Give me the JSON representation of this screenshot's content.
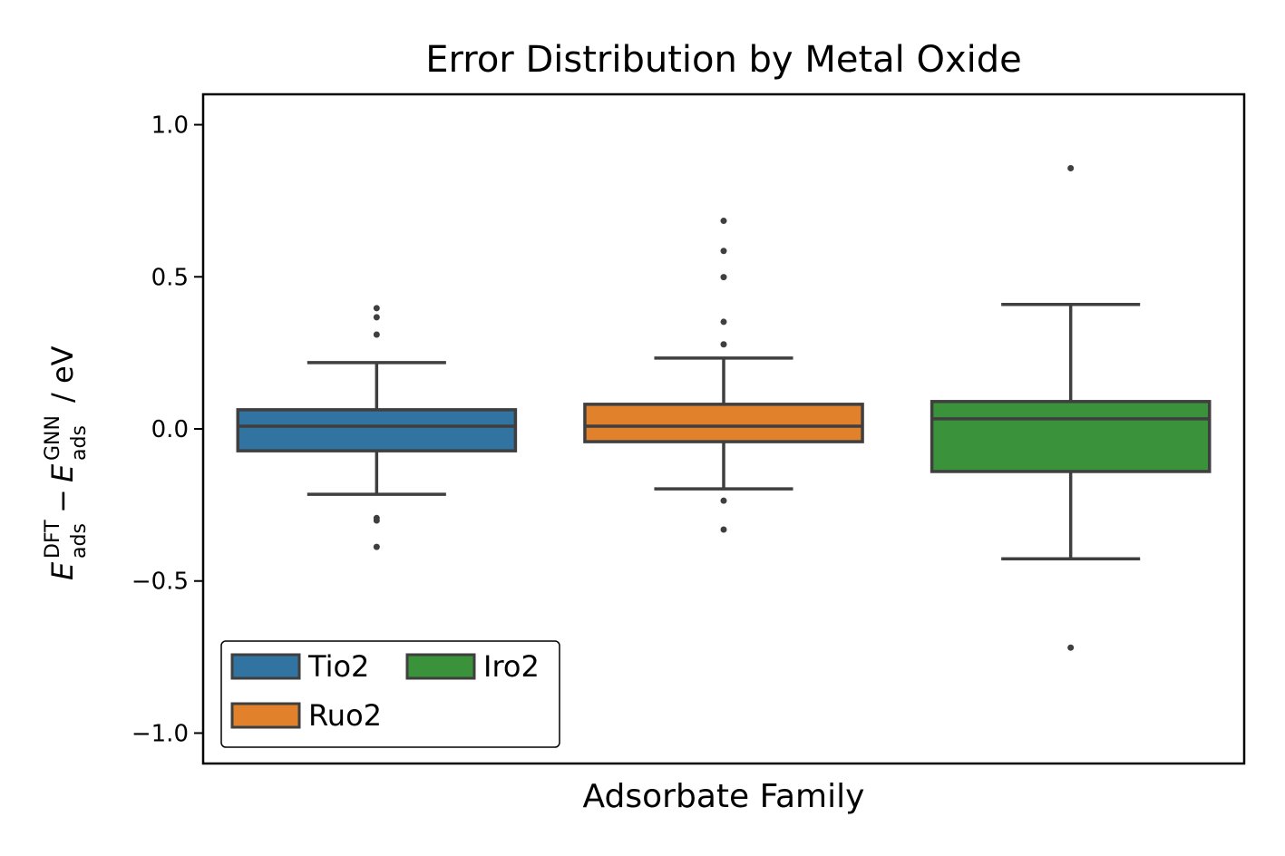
{
  "chart_data": {
    "type": "box",
    "title": "Error Distribution by Metal Oxide",
    "xlabel": "Adsorbate Family",
    "ylabel": [
      "E",
      "DFT",
      "ads",
      "−",
      "E",
      "GNN",
      "ads",
      "/ eV"
    ],
    "ylim": [
      -1.1,
      1.1
    ],
    "yticks": [
      {
        "value": -1.0,
        "label": "−1.0"
      },
      {
        "value": -0.5,
        "label": "−0.5"
      },
      {
        "value": 0.0,
        "label": "0.0"
      },
      {
        "value": 0.5,
        "label": "0.5"
      },
      {
        "value": 1.0,
        "label": "1.0"
      }
    ],
    "legend": "lower left",
    "series": [
      {
        "name": "Tio2",
        "color": "#3274a1",
        "whislo": -0.215,
        "q1": -0.072,
        "med": 0.009,
        "q3": 0.063,
        "whishi": 0.218,
        "fliers": [
          0.397,
          0.367,
          0.31,
          -0.293,
          -0.301,
          -0.388
        ]
      },
      {
        "name": "Ruo2",
        "color": "#e1812c",
        "whislo": -0.197,
        "q1": -0.042,
        "med": 0.009,
        "q3": 0.081,
        "whishi": 0.233,
        "fliers": [
          0.684,
          0.585,
          0.499,
          0.352,
          0.278,
          -0.236,
          -0.331
        ]
      },
      {
        "name": "Iro2",
        "color": "#3a923a",
        "whislo": -0.427,
        "q1": -0.14,
        "med": 0.033,
        "q3": 0.09,
        "whishi": 0.409,
        "fliers": [
          0.857,
          -0.719
        ]
      }
    ]
  }
}
